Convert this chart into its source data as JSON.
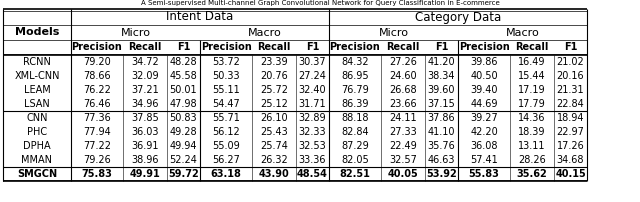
{
  "groups": [
    {
      "rows": [
        [
          "RCNN",
          "79.20",
          "34.72",
          "48.28",
          "53.72",
          "23.39",
          "30.37",
          "84.32",
          "27.26",
          "41.20",
          "39.86",
          "16.49",
          "21.02"
        ],
        [
          "XML-CNN",
          "78.66",
          "32.09",
          "45.58",
          "50.33",
          "20.76",
          "27.24",
          "86.95",
          "24.60",
          "38.34",
          "40.50",
          "15.44",
          "20.16"
        ],
        [
          "LEAM",
          "76.22",
          "37.21",
          "50.01",
          "55.11",
          "25.72",
          "32.40",
          "76.79",
          "26.68",
          "39.60",
          "39.40",
          "17.19",
          "21.31"
        ],
        [
          "LSAN",
          "76.46",
          "34.96",
          "47.98",
          "54.47",
          "25.12",
          "31.71",
          "86.39",
          "23.66",
          "37.15",
          "44.69",
          "17.79",
          "22.84"
        ]
      ]
    },
    {
      "rows": [
        [
          "CNN",
          "77.36",
          "37.85",
          "50.83",
          "55.71",
          "26.10",
          "32.89",
          "88.18",
          "24.11",
          "37.86",
          "39.27",
          "14.36",
          "18.94"
        ],
        [
          "PHC",
          "77.94",
          "36.03",
          "49.28",
          "56.12",
          "25.43",
          "32.33",
          "82.84",
          "27.33",
          "41.10",
          "42.20",
          "18.39",
          "22.97"
        ],
        [
          "DPHA",
          "77.22",
          "36.91",
          "49.94",
          "55.09",
          "25.74",
          "32.53",
          "87.29",
          "22.49",
          "35.76",
          "36.08",
          "13.11",
          "17.26"
        ],
        [
          "MMAN",
          "79.26",
          "38.96",
          "52.24",
          "56.27",
          "26.32",
          "33.36",
          "82.05",
          "32.57",
          "46.63",
          "57.41",
          "28.26",
          "34.68"
        ]
      ]
    },
    {
      "rows": [
        [
          "SMGCN",
          "75.83",
          "49.91",
          "59.72",
          "63.18",
          "43.90",
          "48.54",
          "82.51",
          "40.05",
          "53.92",
          "55.83",
          "35.62",
          "40.15"
        ]
      ]
    }
  ],
  "bold_rows": [
    "SMGCN"
  ],
  "bg_color": "#ffffff"
}
